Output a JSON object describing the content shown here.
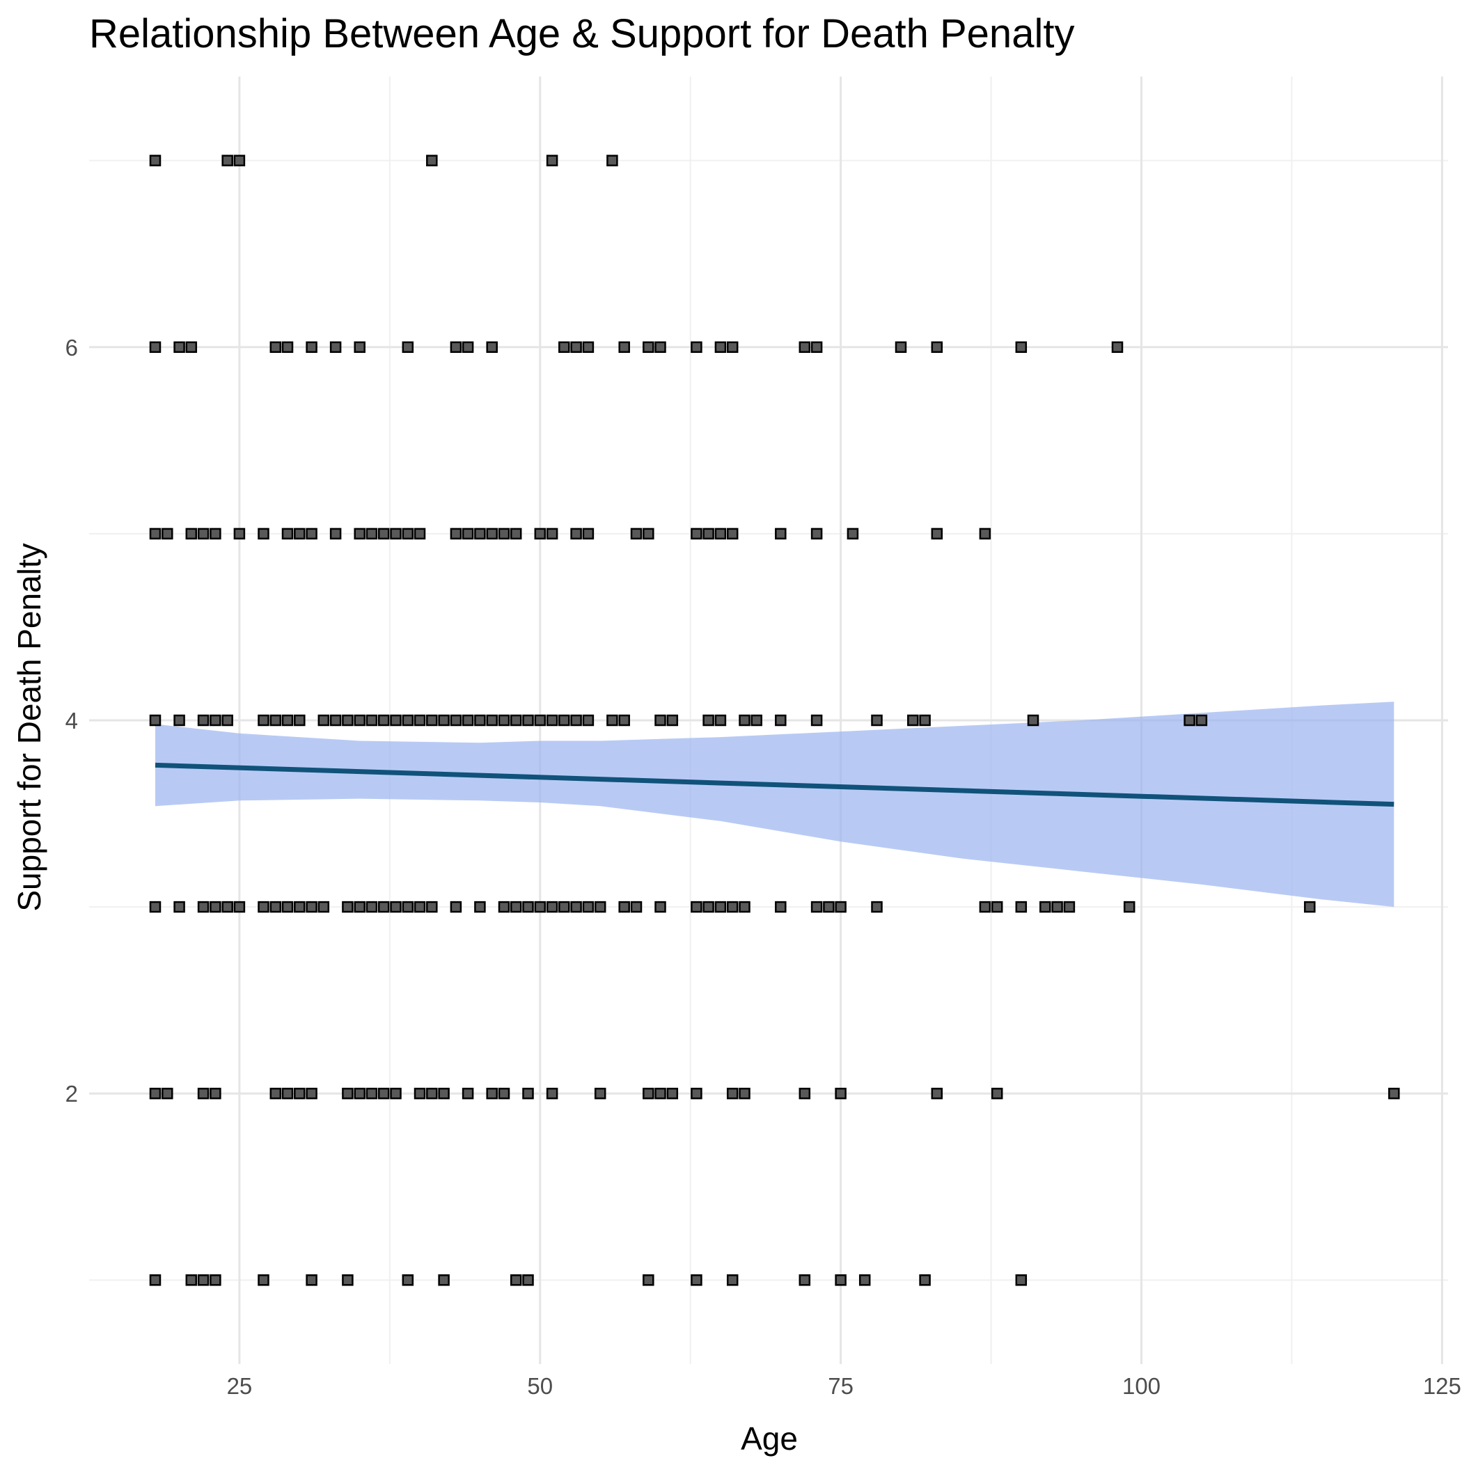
{
  "chart_data": {
    "type": "scatter",
    "title": "Relationship Between Age & Support for Death Penalty",
    "xlabel": "Age",
    "ylabel": "Support for Death Penalty",
    "xlim": [
      12.5,
      125.5
    ],
    "ylim": [
      0.55,
      7.45
    ],
    "x_ticks": [
      25,
      50,
      75,
      100,
      125
    ],
    "x_minor": [
      37.5,
      62.5,
      87.5,
      112.5
    ],
    "y_ticks": [
      2,
      4,
      6
    ],
    "y_minor": [
      1,
      3,
      5,
      7
    ],
    "grid": true,
    "legend": "none",
    "colors": {
      "point_fill": "#595959",
      "point_stroke": "#000000",
      "fit_line": "#10527a",
      "confidence_band": "#9ab4ef",
      "grid_major": "#e5e5e5",
      "grid_minor": "#f0f0f0"
    },
    "points_by_level": [
      {
        "y": 7,
        "x": [
          18,
          24,
          25,
          41,
          51,
          56
        ]
      },
      {
        "y": 6,
        "x": [
          18,
          20,
          21,
          28,
          29,
          31,
          33,
          35,
          39,
          43,
          44,
          46,
          52,
          53,
          54,
          57,
          59,
          60,
          63,
          65,
          66,
          72,
          73,
          80,
          83,
          90,
          98
        ]
      },
      {
        "y": 5,
        "x": [
          18,
          19,
          21,
          22,
          23,
          25,
          27,
          29,
          30,
          31,
          33,
          35,
          36,
          37,
          38,
          39,
          40,
          43,
          44,
          45,
          46,
          47,
          48,
          50,
          51,
          53,
          54,
          58,
          59,
          63,
          64,
          65,
          66,
          70,
          73,
          76,
          83,
          87
        ]
      },
      {
        "y": 4,
        "x": [
          18,
          20,
          22,
          23,
          24,
          27,
          28,
          29,
          30,
          32,
          33,
          34,
          35,
          36,
          37,
          38,
          39,
          40,
          41,
          42,
          43,
          44,
          45,
          46,
          47,
          48,
          49,
          50,
          51,
          52,
          53,
          54,
          56,
          57,
          60,
          61,
          64,
          65,
          67,
          68,
          70,
          73,
          78,
          81,
          82,
          91,
          104,
          105
        ]
      },
      {
        "y": 3,
        "x": [
          18,
          20,
          22,
          23,
          24,
          25,
          27,
          28,
          29,
          30,
          31,
          32,
          34,
          35,
          36,
          37,
          38,
          39,
          40,
          41,
          43,
          45,
          47,
          48,
          49,
          50,
          51,
          52,
          53,
          54,
          55,
          57,
          58,
          60,
          63,
          64,
          65,
          66,
          67,
          70,
          73,
          74,
          75,
          78,
          87,
          88,
          90,
          92,
          93,
          94,
          99,
          114
        ]
      },
      {
        "y": 2,
        "x": [
          18,
          19,
          22,
          23,
          28,
          29,
          30,
          31,
          34,
          35,
          36,
          37,
          38,
          40,
          41,
          42,
          44,
          46,
          47,
          49,
          51,
          55,
          59,
          60,
          61,
          63,
          66,
          67,
          72,
          75,
          83,
          88,
          121
        ]
      },
      {
        "y": 1,
        "x": [
          18,
          21,
          22,
          23,
          27,
          31,
          34,
          39,
          42,
          48,
          49,
          59,
          63,
          66,
          72,
          75,
          77,
          82,
          90
        ]
      }
    ],
    "fit_line": {
      "x": [
        18,
        121
      ],
      "y": [
        3.76,
        3.55
      ]
    },
    "confidence_band": {
      "x": [
        18,
        25,
        35,
        45,
        50,
        55,
        65,
        75,
        85,
        95,
        105,
        115,
        121
      ],
      "lower": [
        3.54,
        3.57,
        3.58,
        3.57,
        3.56,
        3.54,
        3.46,
        3.35,
        3.26,
        3.19,
        3.12,
        3.04,
        3.0
      ],
      "upper": [
        3.98,
        3.93,
        3.89,
        3.88,
        3.89,
        3.89,
        3.91,
        3.94,
        3.97,
        4.0,
        4.04,
        4.08,
        4.1
      ]
    }
  }
}
